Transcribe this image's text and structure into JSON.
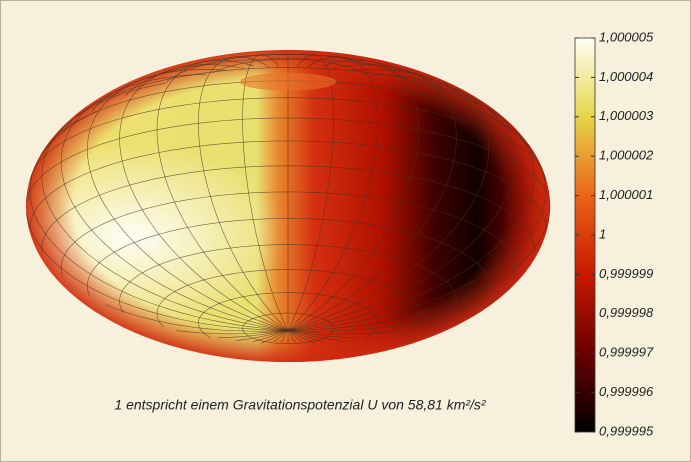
{
  "chart_data": {
    "type": "surface",
    "caption": "1 entspricht einem Gravitationspotenzial U von 58,81 km²/s²",
    "colormap": [
      "#000000",
      "#6a0000",
      "#c81800",
      "#ea6418",
      "#e6d64a",
      "#fffff4"
    ],
    "zlim": [
      0.999995,
      1.000005
    ],
    "zticks": [
      {
        "value": 1.000005,
        "label": "1,000005"
      },
      {
        "value": 1.000004,
        "label": "1,000004"
      },
      {
        "value": 1.000003,
        "label": "1,000003"
      },
      {
        "value": 1.000002,
        "label": "1,000002"
      },
      {
        "value": 1.000001,
        "label": "1,000001"
      },
      1,
      {
        "value": 0.999999,
        "label": "0,999999"
      },
      {
        "value": 0.999998,
        "label": "0,999998"
      },
      {
        "value": 0.999997,
        "label": "0,999997"
      },
      {
        "value": 0.999996,
        "label": "0,999996"
      },
      {
        "value": 0.999995,
        "label": "0,999995"
      }
    ]
  }
}
